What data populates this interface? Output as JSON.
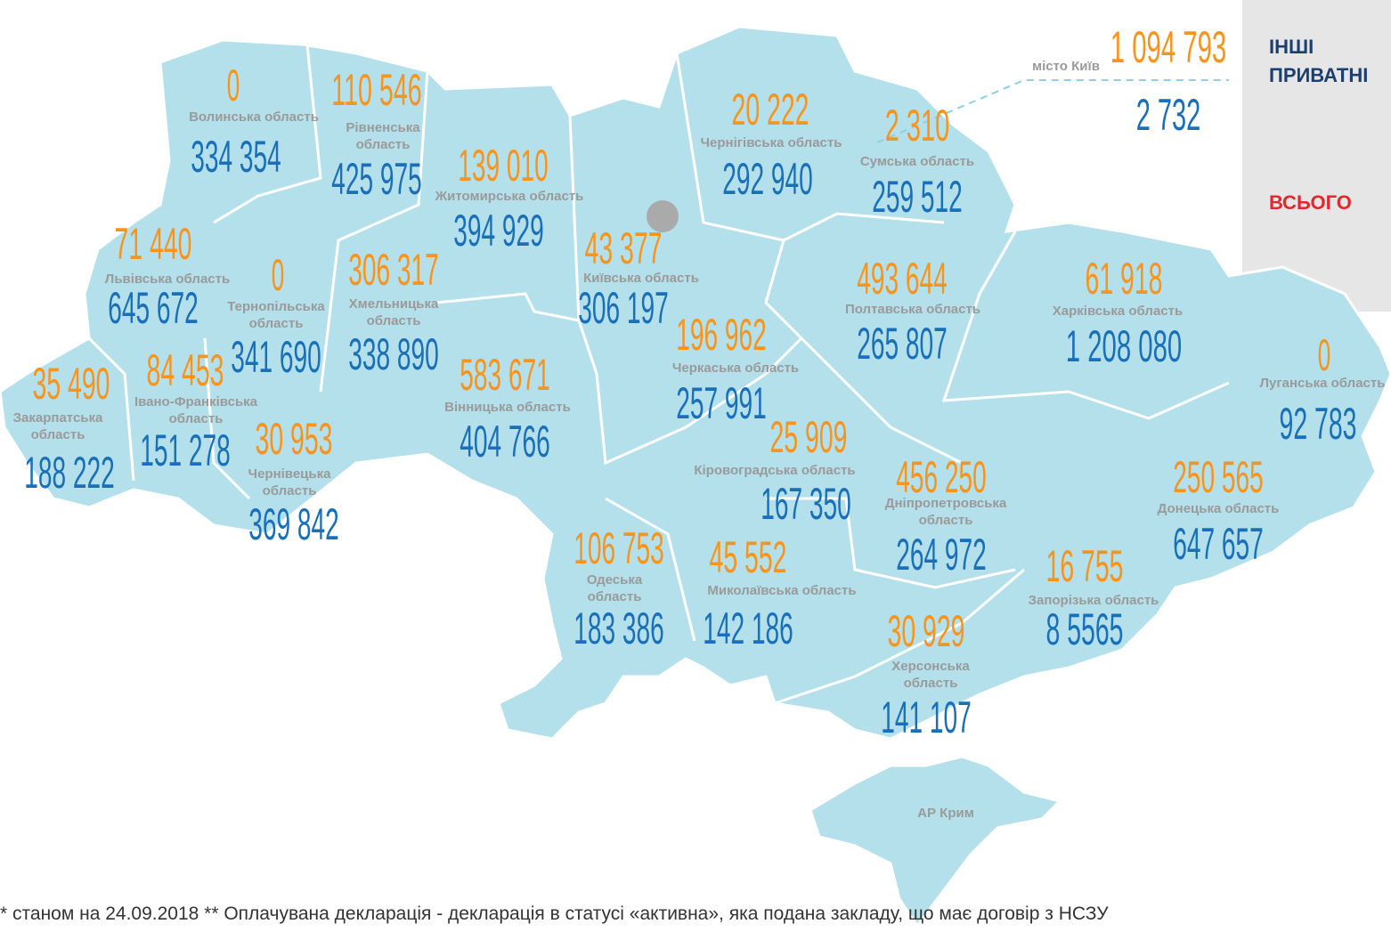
{
  "regions": [
    {
      "name": "Волинська область",
      "private": "0",
      "total": "334 354"
    },
    {
      "name": "Рівненська область",
      "private": "110 546",
      "total": "425 975"
    },
    {
      "name": "Житомирська область",
      "private": "139 010",
      "total": "394 929"
    },
    {
      "name": "Чернігівська область",
      "private": "20 222",
      "total": "292 940"
    },
    {
      "name": "Сумська область",
      "private": "2 310",
      "total": "259 512"
    },
    {
      "name": "місто Київ",
      "private": "1 094 793",
      "total": "2 732"
    },
    {
      "name": "Львівська область",
      "private": "71 440",
      "total": "645 672"
    },
    {
      "name": "Тернопільська область",
      "private": "0",
      "total": "341 690"
    },
    {
      "name": "Хмельницька область",
      "private": "306 317",
      "total": "338 890"
    },
    {
      "name": "Київська область",
      "private": "43 377",
      "total": "306 197"
    },
    {
      "name": "Полтавська область",
      "private": "493 644",
      "total": "265 807"
    },
    {
      "name": "Харківська область",
      "private": "61 918",
      "total": "1 208 080"
    },
    {
      "name": "Луганська область",
      "private": "0",
      "total": "92 783"
    },
    {
      "name": "Черкаська область",
      "private": "196 962",
      "total": "257 991"
    },
    {
      "name": "Закарпатська область",
      "private": "35 490",
      "total": "188 222"
    },
    {
      "name": "Івано-Франківська область",
      "private": "84 453",
      "total": "151 278"
    },
    {
      "name": "Вінницька область",
      "private": "583 671",
      "total": "404 766"
    },
    {
      "name": "Чернівецька область",
      "private": "30 953",
      "total": "369 842"
    },
    {
      "name": "Кіровоградська область",
      "private": "25 909",
      "total": "167 350"
    },
    {
      "name": "Дніпропетровська область",
      "private": "456 250",
      "total": "264 972"
    },
    {
      "name": "Донецька область",
      "private": "250 565",
      "total": "647 657"
    },
    {
      "name": "Одеська область",
      "private": "106 753",
      "total": "183 386"
    },
    {
      "name": "Миколаївська область",
      "private": "45 552",
      "total": "142 186"
    },
    {
      "name": "Запорізька область",
      "private": "16 755",
      "total": "8 5565"
    },
    {
      "name": "Херсонська область",
      "private": "30 929",
      "total": "141 107"
    },
    {
      "name": "АР Крим"
    }
  ],
  "legend": {
    "private_1": "ІНШІ",
    "private_2": "ПРИВАТНІ",
    "total": "ВСЬОГО"
  },
  "footnote": "* станом на 24.09.2018   ** Оплачувана декларація - декларація в статусі «активна», яка подана закладу, що має договір з НСЗУ"
}
